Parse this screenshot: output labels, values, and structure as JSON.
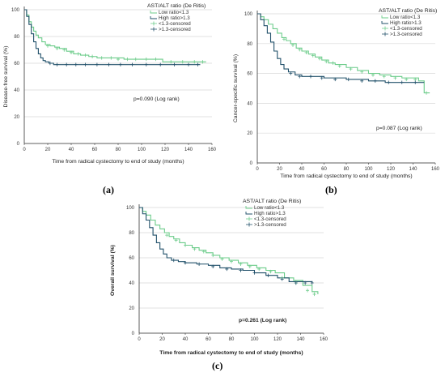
{
  "panels": [
    {
      "label": "(a)"
    },
    {
      "label": "(b)"
    },
    {
      "label": "(c)"
    }
  ],
  "colors": {
    "low": "#6ccc8a",
    "high": "#21506a",
    "grid": "#d9d9d9",
    "axis": "#333333"
  },
  "chart_data": [
    {
      "type": "line",
      "title": "",
      "ylabel": "Disease-free survival (%)",
      "xlabel": "Time from radical cystectomy to end of study (months)",
      "legend_title": "AST/ALT ratio (De Ritis)",
      "legend_placement": "top-right",
      "annotation": "p=0.090 (Log rank)",
      "xlim": [
        0,
        160
      ],
      "ylim": [
        0,
        100
      ],
      "xticks": [
        0,
        20,
        40,
        60,
        80,
        100,
        120,
        140,
        160
      ],
      "yticks": [
        0,
        20,
        40,
        60,
        80,
        100
      ],
      "grid": "horizontal",
      "series": [
        {
          "name": "Low ratio<1.3",
          "color_key": "low",
          "step": true,
          "x": [
            0,
            2,
            4,
            6,
            8,
            10,
            12,
            15,
            18,
            22,
            26,
            30,
            36,
            42,
            48,
            55,
            62,
            72,
            85,
            100,
            118,
            130,
            155
          ],
          "y": [
            100,
            96,
            91,
            87,
            84,
            81,
            79,
            76,
            74,
            73,
            72,
            71,
            69,
            67,
            66,
            65,
            64,
            64,
            63,
            63,
            61,
            61,
            61
          ]
        },
        {
          "name": "High ratio>1.3",
          "color_key": "high",
          "step": true,
          "x": [
            0,
            2,
            4,
            6,
            8,
            10,
            12,
            14,
            16,
            18,
            21,
            25,
            35,
            60,
            100,
            150
          ],
          "y": [
            100,
            95,
            89,
            82,
            76,
            71,
            67,
            64,
            62,
            61,
            60,
            59,
            59,
            59,
            59,
            59
          ]
        },
        {
          "name": "<1.3-censored",
          "color_key": "low",
          "marker": "censored",
          "x": [
            20,
            28,
            34,
            40,
            46,
            52,
            58,
            66,
            74,
            80,
            88,
            95,
            104,
            112,
            125,
            135,
            145,
            152
          ],
          "y": [
            73,
            71,
            70,
            68,
            67,
            66,
            65,
            64,
            64,
            63,
            63,
            63,
            63,
            63,
            61,
            61,
            61,
            61
          ]
        },
        {
          "name": ">1.3-censored",
          "color_key": "high",
          "marker": "censored",
          "x": [
            22,
            28,
            36,
            44,
            52,
            62,
            72,
            82,
            92,
            104,
            116,
            128,
            140,
            148
          ],
          "y": [
            60,
            59,
            59,
            59,
            59,
            59,
            59,
            59,
            59,
            59,
            59,
            59,
            59,
            59
          ]
        }
      ]
    },
    {
      "type": "line",
      "title": "",
      "ylabel": "Cancer-specific survival (%)",
      "xlabel": "Time from radical cystectomy to end of study (months)",
      "legend_title": "AST/ALT ratio (De Ritis)",
      "legend_placement": "top-right",
      "annotation": "p=0.087 (Log rank)",
      "xlim": [
        0,
        160
      ],
      "ylim": [
        0,
        100
      ],
      "xticks": [
        0,
        20,
        40,
        60,
        80,
        100,
        120,
        140,
        160
      ],
      "yticks": [
        0,
        20,
        40,
        60,
        80,
        100
      ],
      "grid": "horizontal",
      "series": [
        {
          "name": "Low ratio<1.3",
          "color_key": "low",
          "step": true,
          "x": [
            0,
            3,
            6,
            10,
            14,
            18,
            22,
            26,
            30,
            35,
            40,
            46,
            52,
            58,
            64,
            70,
            80,
            90,
            100,
            110,
            120,
            130,
            145,
            150,
            155
          ],
          "y": [
            100,
            98,
            96,
            93,
            90,
            87,
            84,
            82,
            80,
            77,
            75,
            73,
            71,
            69,
            67,
            66,
            64,
            62,
            60,
            59,
            58,
            57,
            55,
            47,
            47
          ]
        },
        {
          "name": "High ratio>1.3",
          "color_key": "high",
          "step": true,
          "x": [
            0,
            3,
            6,
            9,
            12,
            15,
            18,
            21,
            24,
            28,
            34,
            40,
            60,
            80,
            100,
            115,
            150
          ],
          "y": [
            100,
            96,
            92,
            87,
            81,
            75,
            70,
            66,
            63,
            61,
            59,
            58,
            57,
            56,
            55,
            54,
            54
          ]
        },
        {
          "name": "<1.3-censored",
          "color_key": "low",
          "marker": "censored",
          "x": [
            24,
            32,
            38,
            44,
            50,
            56,
            62,
            68,
            74,
            84,
            94,
            104,
            114,
            124,
            134,
            142,
            152
          ],
          "y": [
            83,
            79,
            76,
            74,
            72,
            70,
            68,
            67,
            65,
            63,
            61,
            59,
            58,
            57,
            56,
            56,
            47
          ]
        },
        {
          "name": ">1.3-censored",
          "color_key": "high",
          "marker": "censored",
          "x": [
            30,
            38,
            48,
            58,
            70,
            82,
            94,
            106,
            118,
            130,
            142
          ],
          "y": [
            60,
            58,
            58,
            57,
            56,
            56,
            55,
            55,
            54,
            54,
            54
          ]
        }
      ]
    },
    {
      "type": "line",
      "title": "",
      "ylabel": "Overall survival (%)",
      "xlabel": "Time from radical cystectomy to end of study (months)",
      "legend_title": "AST/ALT ratio (De Ritis)",
      "legend_placement": "top-right",
      "annotation": "p=0.261 (Log rank)",
      "xlim": [
        0,
        160
      ],
      "ylim": [
        0,
        100
      ],
      "xticks": [
        0,
        20,
        40,
        60,
        80,
        100,
        120,
        140,
        160
      ],
      "yticks": [
        0,
        20,
        40,
        60,
        80,
        100
      ],
      "grid": "horizontal",
      "series": [
        {
          "name": "Low ratio<1.3",
          "color_key": "low",
          "step": true,
          "x": [
            0,
            3,
            6,
            10,
            14,
            18,
            22,
            26,
            30,
            35,
            40,
            46,
            52,
            58,
            64,
            70,
            78,
            86,
            94,
            102,
            110,
            118,
            126,
            134,
            142,
            150,
            155
          ],
          "y": [
            100,
            97,
            94,
            90,
            86,
            83,
            80,
            77,
            75,
            72,
            70,
            68,
            66,
            64,
            62,
            60,
            58,
            56,
            54,
            52,
            50,
            48,
            44,
            42,
            38,
            33,
            31
          ]
        },
        {
          "name": "High ratio>1.3",
          "color_key": "high",
          "step": true,
          "x": [
            0,
            3,
            6,
            9,
            12,
            15,
            18,
            21,
            24,
            28,
            34,
            40,
            50,
            60,
            70,
            80,
            90,
            100,
            110,
            120,
            130,
            150
          ],
          "y": [
            100,
            95,
            90,
            84,
            78,
            72,
            67,
            63,
            60,
            58,
            57,
            56,
            55,
            54,
            52,
            51,
            50,
            48,
            46,
            44,
            41,
            40
          ]
        },
        {
          "name": "<1.3-censored",
          "color_key": "low",
          "marker": "censored",
          "x": [
            24,
            32,
            40,
            48,
            56,
            64,
            72,
            80,
            88,
            96,
            104,
            114,
            124,
            136,
            146,
            152
          ],
          "y": [
            78,
            74,
            70,
            67,
            65,
            62,
            59,
            57,
            55,
            53,
            51,
            49,
            44,
            40,
            34,
            31
          ]
        },
        {
          "name": ">1.3-censored",
          "color_key": "high",
          "marker": "censored",
          "x": [
            30,
            40,
            52,
            64,
            76,
            88,
            100,
            112,
            124,
            136,
            144,
            150
          ],
          "y": [
            58,
            56,
            55,
            53,
            51,
            50,
            48,
            46,
            43,
            40,
            40,
            40
          ]
        }
      ]
    }
  ]
}
